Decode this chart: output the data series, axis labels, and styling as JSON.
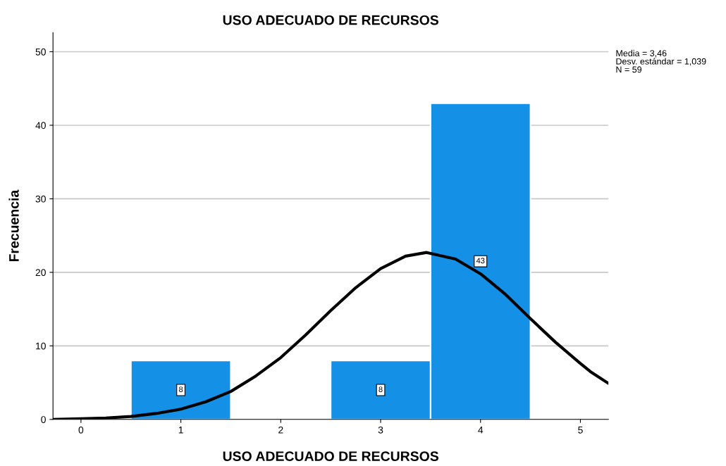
{
  "chart_data": {
    "type": "histogram",
    "title": "USO ADECUADO DE RECURSOS",
    "xlabel": "USO ADECUADO DE RECURSOS",
    "ylabel": "Frecuencia",
    "bins": [
      0.5,
      1.5,
      2.5,
      3.5,
      4.5
    ],
    "values": [
      8,
      0,
      8,
      43
    ],
    "color": "#1490e6",
    "value_labels": [
      "8",
      null,
      "8",
      "43"
    ],
    "series": [
      {
        "type": "line",
        "color": "#000000",
        "x": [
          -0.28,
          0,
          0.25,
          0.5,
          0.75,
          1,
          1.25,
          1.5,
          1.75,
          2,
          2.25,
          2.5,
          2.75,
          3,
          3.25,
          3.46,
          3.75,
          4,
          4.25,
          4.5,
          4.75,
          5,
          5.1,
          5.28
        ],
        "values": [
          0,
          0.1,
          0.2,
          0.4,
          0.8,
          1.4,
          2.4,
          3.8,
          5.9,
          8.4,
          11.5,
          14.8,
          17.9,
          20.5,
          22.2,
          22.7,
          21.8,
          19.8,
          17,
          13.7,
          10.5,
          7.6,
          6.5,
          4.9
        ]
      }
    ],
    "xlim": [
      -0.28,
      5.28
    ],
    "ylim": [
      0,
      52.6
    ],
    "xticks": [
      0,
      1,
      2,
      3,
      4,
      5
    ],
    "yticks": [
      0,
      10,
      20,
      30,
      40,
      50
    ],
    "grid": "y",
    "line_style": "solid",
    "annotations": [
      "Media = 3,46",
      "Desv. estándar = 1,039",
      "N = 59"
    ]
  }
}
